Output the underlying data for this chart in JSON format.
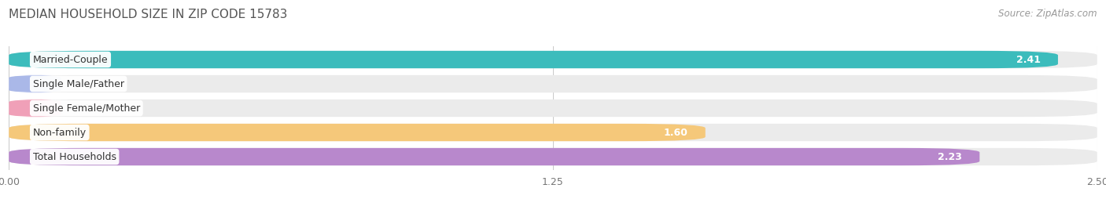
{
  "title": "MEDIAN HOUSEHOLD SIZE IN ZIP CODE 15783",
  "source": "Source: ZipAtlas.com",
  "categories": [
    "Married-Couple",
    "Single Male/Father",
    "Single Female/Mother",
    "Non-family",
    "Total Households"
  ],
  "values": [
    2.41,
    0.0,
    0.0,
    1.6,
    2.23
  ],
  "bar_colors": [
    "#3cbcbc",
    "#aab8e8",
    "#f0a0b8",
    "#f5c87a",
    "#b888cc"
  ],
  "bar_bg_color": "#ebebeb",
  "xlim": [
    0,
    2.5
  ],
  "xticks": [
    0.0,
    1.25,
    2.5
  ],
  "xtick_labels": [
    "0.00",
    "1.25",
    "2.50"
  ],
  "title_fontsize": 11,
  "source_fontsize": 8.5,
  "label_fontsize": 9,
  "value_fontsize": 9,
  "background_color": "#ffffff",
  "grid_color": "#cccccc",
  "bar_height": 0.72,
  "rounding": 0.18
}
